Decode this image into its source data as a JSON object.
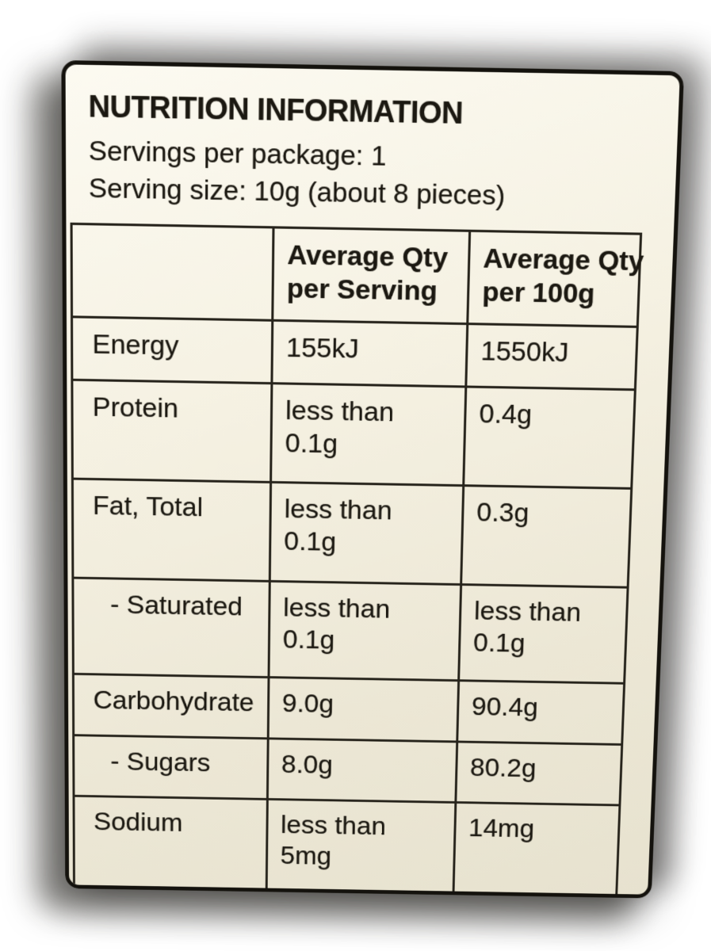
{
  "label": {
    "title": "NUTRITION INFORMATION",
    "servings_line": "Servings per package: 1",
    "serving_size_line": "Serving size: 10g (about 8 pieces)"
  },
  "table": {
    "columns": [
      "",
      "Average Qty\nper Serving",
      "Average Qty\nper 100g"
    ],
    "rows": [
      {
        "nutrient": "Energy",
        "per_serving": "155kJ",
        "per_100g": "1550kJ",
        "indent": false
      },
      {
        "nutrient": "Protein",
        "per_serving": "less than\n0.1g",
        "per_100g": "0.4g",
        "indent": false
      },
      {
        "nutrient": "Fat, Total",
        "per_serving": "less than\n0.1g",
        "per_100g": "0.3g",
        "indent": false
      },
      {
        "nutrient": "- Saturated",
        "per_serving": "less than\n0.1g",
        "per_100g": "less than\n0.1g",
        "indent": true
      },
      {
        "nutrient": "Carbohydrate",
        "per_serving": "9.0g",
        "per_100g": "90.4g",
        "indent": false
      },
      {
        "nutrient": "- Sugars",
        "per_serving": "8.0g",
        "per_100g": "80.2g",
        "indent": true
      },
      {
        "nutrient": "Sodium",
        "per_serving": "less than\n5mg",
        "per_100g": "14mg",
        "indent": false
      }
    ]
  },
  "colors": {
    "page_bg": "#ffffff",
    "label_bg_top": "#fcfaf1",
    "label_bg_bottom": "#e7e2cf",
    "ink": "#1b1811",
    "grid_line": "#26231b",
    "label_edge": "#14120d"
  }
}
